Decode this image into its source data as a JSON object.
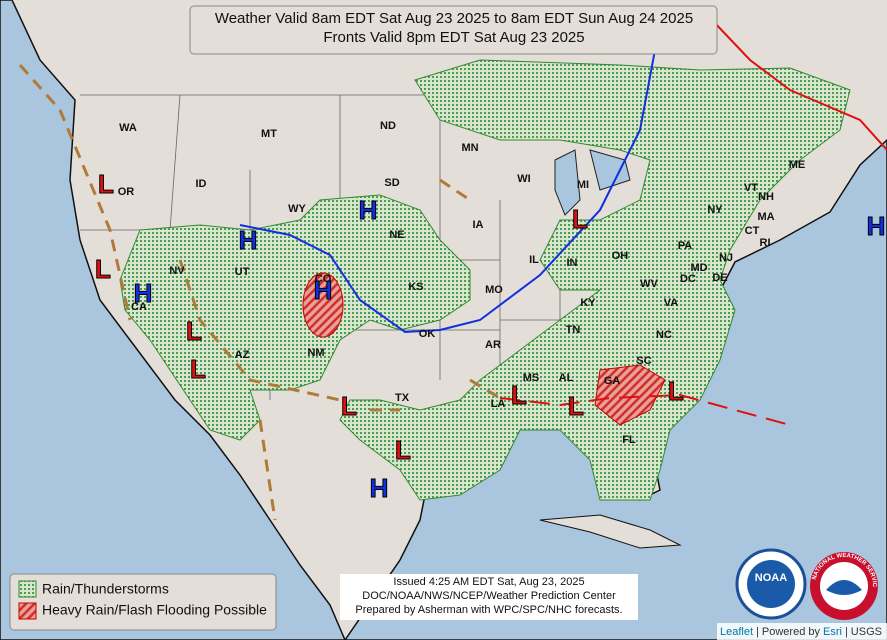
{
  "title": {
    "line1": "Weather Valid 8am EDT Sat Aug 23 2025 to 8am EDT Sun Aug 24 2025",
    "line2": "Fronts Valid 8pm EDT Sat Aug 23 2025"
  },
  "states": [
    "WA",
    "OR",
    "CA",
    "NV",
    "ID",
    "MT",
    "WY",
    "UT",
    "AZ",
    "CO",
    "NM",
    "ND",
    "SD",
    "NE",
    "KS",
    "OK",
    "TX",
    "MN",
    "IA",
    "MO",
    "AR",
    "LA",
    "WI",
    "IL",
    "MS",
    "MI",
    "IN",
    "KY",
    "TN",
    "AL",
    "GA",
    "FL",
    "SC",
    "NC",
    "VA",
    "WV",
    "OH",
    "PA",
    "NY",
    "MD",
    "DE",
    "NJ",
    "DC",
    "CT",
    "RI",
    "MA",
    "VT",
    "NH",
    "ME"
  ],
  "pressure_centers": [
    "H",
    "H",
    "H",
    "H",
    "H",
    "H",
    "L",
    "L",
    "L",
    "L",
    "L",
    "L",
    "L",
    "L",
    "L",
    "L"
  ],
  "legend": [
    "Rain/Thunderstorms",
    "Heavy Rain/Flash Flooding Possible"
  ],
  "issued": [
    "Issued  4:25 AM EDT  Sat, Aug 23, 2025",
    "DOC/NOAA/NWS/NCEP/Weather Prediction Center",
    "Prepared by Asherman with WPC/SPC/NHC forecasts."
  ],
  "attribution": [
    "Leaflet",
    "|",
    "Powered by",
    "Esri",
    "|",
    "USGS"
  ],
  "logos": {
    "noaa": "NOAA",
    "nws": "NATIONAL WEATHER SERVICE"
  }
}
